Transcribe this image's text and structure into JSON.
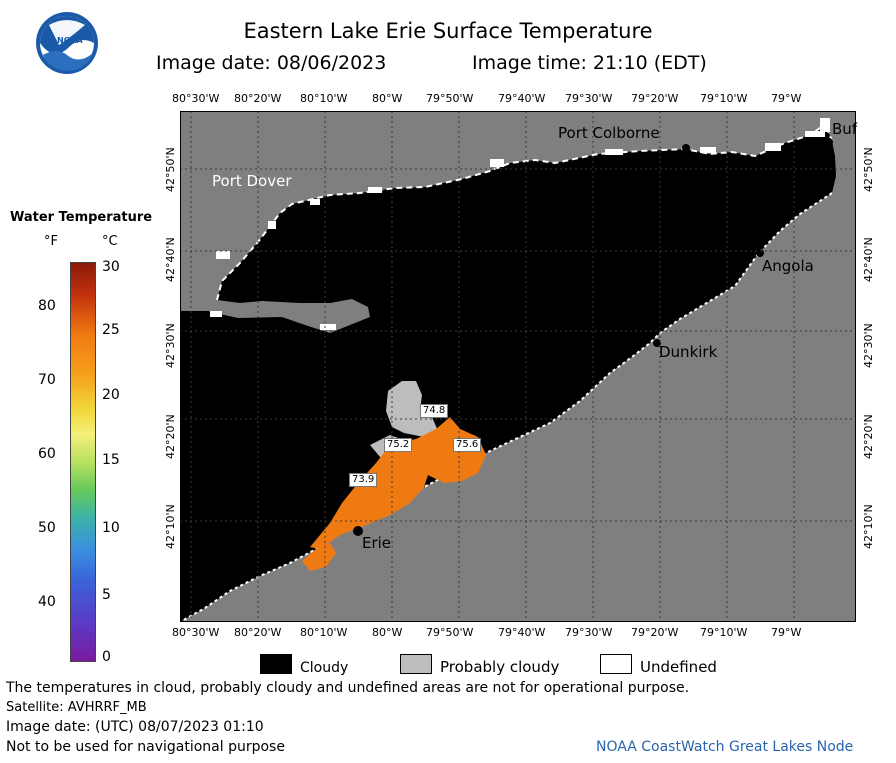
{
  "header": {
    "title": "Eastern Lake Erie Surface Temperature",
    "image_date": "Image date: 08/06/2023",
    "image_time": "Image time: 21:10 (EDT)"
  },
  "logo": {
    "text": "NOAA"
  },
  "map": {
    "lon_labels": [
      "80°30'W",
      "80°20'W",
      "80°10'W",
      "80°W",
      "79°50'W",
      "79°40'W",
      "79°30'W",
      "79°20'W",
      "79°10'W",
      "79°W"
    ],
    "lat_labels": [
      "42°50'N",
      "42°40'N",
      "42°30'N",
      "42°20'N",
      "42°10'N"
    ],
    "places": {
      "port_colborne": "Port Colborne",
      "port_dover": "Port Dover",
      "buffalo": "Buf",
      "angola": "Angola",
      "dunkirk": "Dunkirk",
      "erie": "Erie"
    },
    "temps": [
      "74.8",
      "75.2",
      "75.6",
      "73.9"
    ],
    "colors": {
      "water": "#000000",
      "land": "#7f7f7f",
      "cloud_prob": "#bdbdbd",
      "warm": "#f07a12",
      "coast": "#ffffff"
    }
  },
  "colorbar": {
    "title": "Water Temperature",
    "f_unit": "°F",
    "c_unit": "°C",
    "f_ticks": [
      "80",
      "70",
      "60",
      "50",
      "40"
    ],
    "c_ticks": [
      "30",
      "25",
      "20",
      "15",
      "10",
      "5",
      "0"
    ]
  },
  "legend": {
    "cloudy": "Cloudy",
    "probably_cloudy": "Probably cloudy",
    "undefined": "Undefined"
  },
  "footer": {
    "disclaimer": "The temperatures in cloud, probably cloudy and undefined areas are not for operational purpose.",
    "satellite": "Satellite: AVHRRF_MB",
    "utc_date": "Image date: (UTC) 08/07/2023  01:10",
    "nav": "Not to be used for navigational purpose",
    "credit": "NOAA CoastWatch Great Lakes Node"
  }
}
